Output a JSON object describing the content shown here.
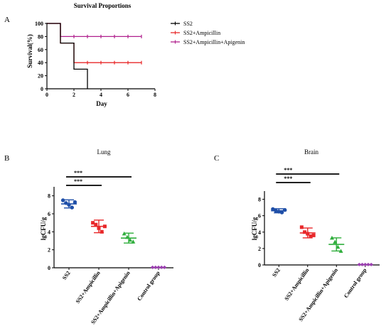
{
  "panel_labels": [
    "A",
    "B",
    "C"
  ],
  "chart_data": [
    {
      "type": "line",
      "subtype": "kaplan-meier step",
      "title": "Survival Proportions",
      "xlabel": "Day",
      "ylabel": "Survival(%)",
      "xlim": [
        0,
        8
      ],
      "ylim": [
        0,
        100
      ],
      "xticks": [
        "0",
        "2",
        "4",
        "6",
        "8"
      ],
      "yticks": [
        "0",
        "20",
        "40",
        "60",
        "80",
        "100"
      ],
      "legend_position": "right",
      "series": [
        {
          "name": "SS2",
          "color": "#000000",
          "steps": [
            [
              0,
              100
            ],
            [
              1,
              100
            ],
            [
              1,
              70
            ],
            [
              2,
              70
            ],
            [
              2,
              30
            ],
            [
              3,
              30
            ],
            [
              3,
              0
            ]
          ],
          "censor_x": []
        },
        {
          "name": "SS2+Ampicillin",
          "color": "#e8282a",
          "steps": [
            [
              0,
              100
            ],
            [
              1,
              100
            ],
            [
              1,
              70
            ],
            [
              2,
              70
            ],
            [
              2,
              40
            ],
            [
              7,
              40
            ]
          ],
          "censor_x": [
            3,
            4,
            5,
            6,
            7
          ]
        },
        {
          "name": "SS2+Ampicillin+Apigenin",
          "color": "#b0208d",
          "steps": [
            [
              0,
              100
            ],
            [
              1,
              100
            ],
            [
              1,
              80
            ],
            [
              7,
              80
            ]
          ],
          "censor_x": [
            2,
            3,
            4,
            5,
            6,
            7
          ]
        }
      ]
    },
    {
      "type": "scatter",
      "subtype": "dot plot with mean and SD",
      "title": "Lung",
      "ylabel": "lgCFU/g",
      "ylim": [
        0,
        9
      ],
      "yticks": [
        "0",
        "2",
        "4",
        "6",
        "8"
      ],
      "categories": [
        "SS2",
        "SS2+Ampicillin",
        "SS2+Ampicillin+Apigenin",
        "Control group"
      ],
      "groups": [
        {
          "name": "SS2",
          "color": "#1f4fa8",
          "marker": "circle",
          "mean": 7.1,
          "sd": 0.45,
          "points": [
            7.5,
            7.2,
            7.0,
            6.7,
            7.3
          ]
        },
        {
          "name": "SS2+Ampicillin",
          "color": "#e8282a",
          "marker": "square",
          "mean": 4.6,
          "sd": 0.7,
          "points": [
            5.0,
            4.8,
            4.4,
            4.0,
            4.6
          ]
        },
        {
          "name": "SS2+Ampicillin+Apigenin",
          "color": "#2fae3c",
          "marker": "triangle",
          "mean": 3.3,
          "sd": 0.55,
          "points": [
            3.8,
            3.4,
            3.1,
            2.9
          ]
        },
        {
          "name": "Control group",
          "color": "#9b3fb0",
          "marker": "diamond",
          "mean": 0.05,
          "sd": 0.0,
          "points": [
            0.05,
            0.05,
            0.05,
            0.05,
            0.05
          ]
        }
      ],
      "significance": [
        {
          "label": "***",
          "from": 0,
          "to": 1
        },
        {
          "label": "***",
          "from": 0,
          "to": 2
        }
      ]
    },
    {
      "type": "scatter",
      "subtype": "dot plot with mean and SD",
      "title": "Brain",
      "ylabel": "lgCFU/g",
      "ylim": [
        0,
        9
      ],
      "yticks": [
        "0",
        "2",
        "4",
        "6",
        "8"
      ],
      "categories": [
        "SS2",
        "SS2+Ampicillin",
        "SS2+Ampicillin+Apigenin",
        "Control group"
      ],
      "groups": [
        {
          "name": "SS2",
          "color": "#1f4fa8",
          "marker": "circle",
          "mean": 6.6,
          "sd": 0.25,
          "points": [
            6.8,
            6.6,
            6.5,
            6.4,
            6.7
          ]
        },
        {
          "name": "SS2+Ampicillin",
          "color": "#e8282a",
          "marker": "square",
          "mean": 3.9,
          "sd": 0.6,
          "points": [
            4.6,
            4.0,
            3.8,
            3.5,
            3.6
          ]
        },
        {
          "name": "SS2+Ampicillin+Apigenin",
          "color": "#2fae3c",
          "marker": "triangle",
          "mean": 2.5,
          "sd": 0.8,
          "points": [
            3.3,
            2.8,
            2.2,
            1.7
          ]
        },
        {
          "name": "Control group",
          "color": "#9b3fb0",
          "marker": "diamond",
          "mean": 0.05,
          "sd": 0.0,
          "points": [
            0.05,
            0.05,
            0.05,
            0.05,
            0.05
          ]
        }
      ],
      "significance": [
        {
          "label": "***",
          "from": 0,
          "to": 1
        },
        {
          "label": "***",
          "from": 0,
          "to": 2
        }
      ]
    }
  ]
}
